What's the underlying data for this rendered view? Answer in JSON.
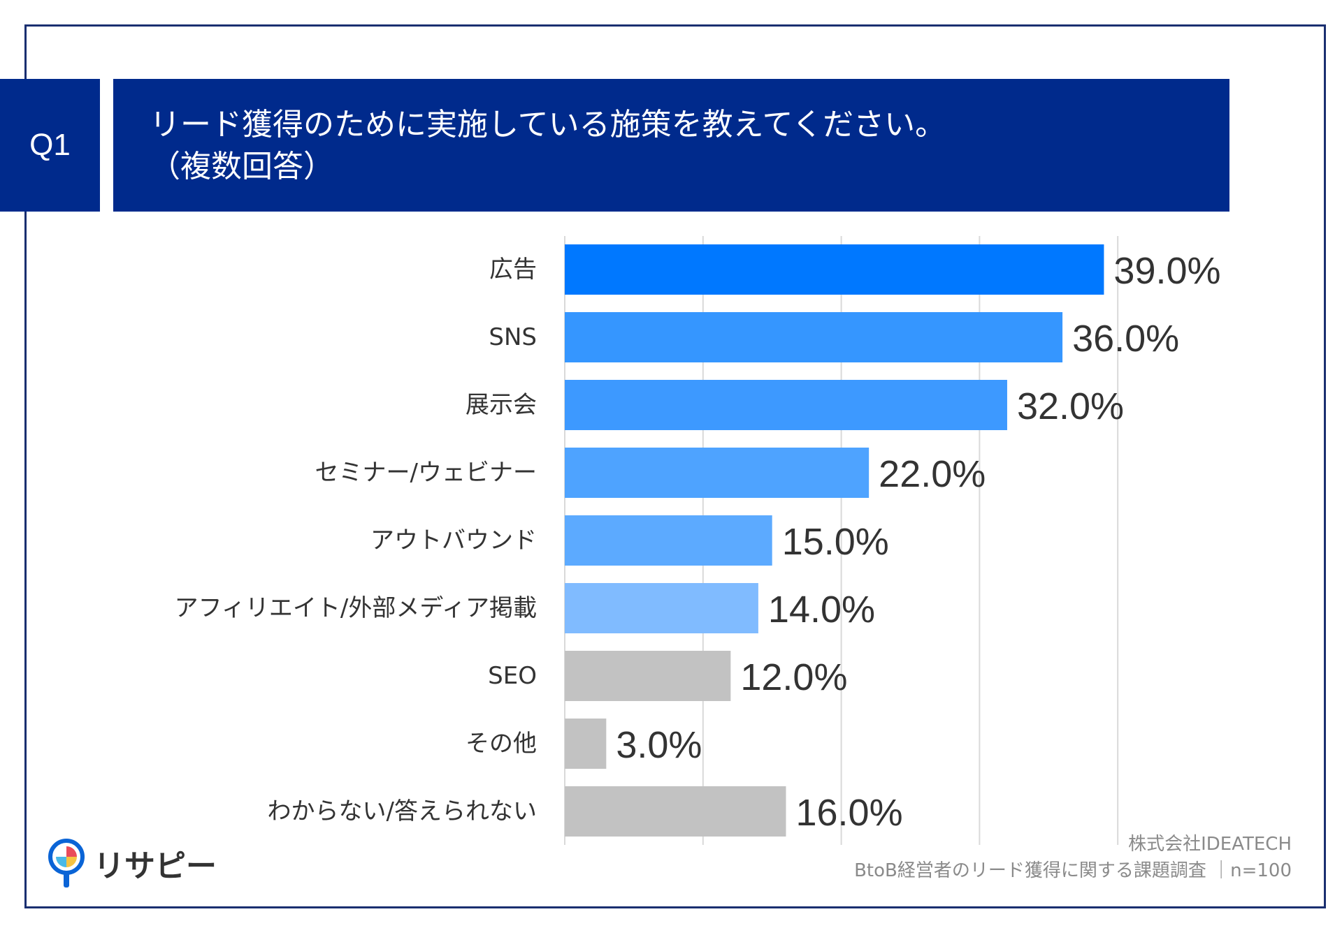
{
  "header": {
    "q_label": "Q1",
    "title_line1": "リード獲得のために実施している施策を教えてください。",
    "title_line2": "（複数回答）"
  },
  "footer": {
    "company": "株式会社IDEATECH",
    "survey": "BtoB経営者のリード獲得に関する課題調査 ｜n=100"
  },
  "logo": {
    "text": "リサピー",
    "icon": "magnifier-logo-icon"
  },
  "colors": {
    "header_bg": "#002a8c",
    "bar_top": "#0078ff",
    "bar_mid": "#3596ff",
    "bar_light": "#4ea3ff",
    "bar_lighter": "#80bbff",
    "bar_gray": "#c2c2c2"
  },
  "chart_data": {
    "type": "bar",
    "orientation": "horizontal",
    "categories": [
      "広告",
      "SNS",
      "展示会",
      "セミナー/ウェビナー",
      "アウトバウンド",
      "アフィリエイト/外部メディア掲載",
      "SEO",
      "その他",
      "わからない/答えられない"
    ],
    "values": [
      39.0,
      36.0,
      32.0,
      22.0,
      15.0,
      14.0,
      12.0,
      3.0,
      16.0
    ],
    "value_labels": [
      "39.0%",
      "36.0%",
      "32.0%",
      "22.0%",
      "15.0%",
      "14.0%",
      "12.0%",
      "3.0%",
      "16.0%"
    ],
    "bar_colors": [
      "#0078ff",
      "#3596ff",
      "#3d99ff",
      "#4ea3ff",
      "#5caaff",
      "#80bbff",
      "#c2c2c2",
      "#c2c2c2",
      "#c2c2c2"
    ],
    "xlim": [
      0,
      50
    ],
    "grid": true
  }
}
